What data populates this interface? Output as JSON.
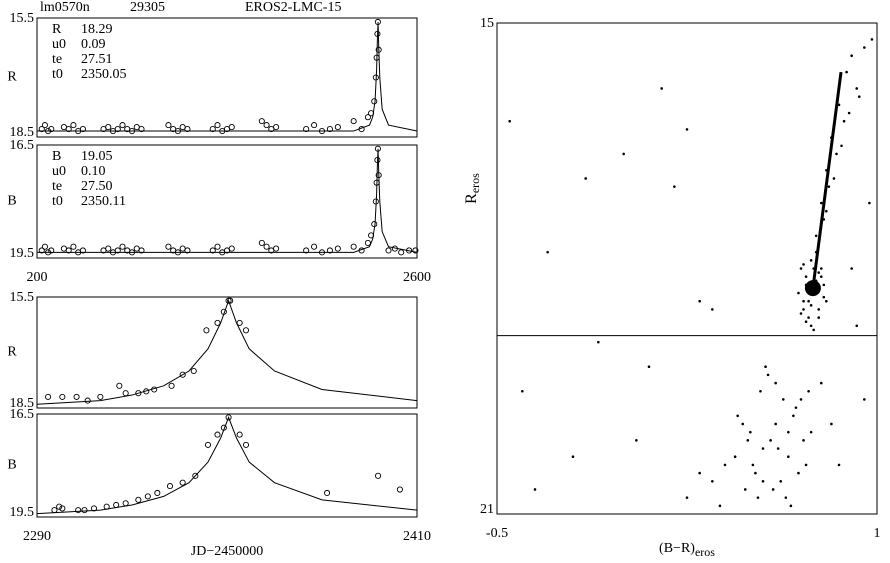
{
  "header": {
    "field": "lm0570n",
    "star": "29305",
    "event": "EROS2-LMC-15"
  },
  "chart_data": [
    {
      "type": "scatter",
      "ylabel": "R",
      "xlim": [
        200,
        2600
      ],
      "ylim": [
        18.5,
        15.5
      ],
      "yticks": [
        15.5,
        18.5
      ],
      "params": [
        [
          "R",
          "18.29"
        ],
        [
          "u0",
          "0.09"
        ],
        [
          "te",
          "27.51"
        ],
        [
          "t0",
          "2350.05"
        ]
      ],
      "points": {
        "x": [
          230,
          250,
          270,
          290,
          370,
          400,
          430,
          460,
          490,
          620,
          650,
          680,
          710,
          740,
          770,
          800,
          830,
          860,
          1030,
          1060,
          1090,
          1120,
          1150,
          1310,
          1340,
          1370,
          1400,
          1430,
          1620,
          1650,
          1680,
          1710,
          1900,
          1950,
          2000,
          2050,
          2100,
          2200,
          2250,
          2290,
          2310,
          2330,
          2340,
          2345,
          2350,
          2353,
          2358
        ],
        "values": [
          18.3,
          18.2,
          18.35,
          18.3,
          18.25,
          18.3,
          18.2,
          18.35,
          18.3,
          18.3,
          18.25,
          18.35,
          18.3,
          18.2,
          18.3,
          18.35,
          18.25,
          18.3,
          18.2,
          18.3,
          18.35,
          18.25,
          18.3,
          18.3,
          18.2,
          18.35,
          18.3,
          18.25,
          18.1,
          18.2,
          18.3,
          18.25,
          18.3,
          18.2,
          18.35,
          18.3,
          18.25,
          18.1,
          18.3,
          18.0,
          17.9,
          17.6,
          17.0,
          16.5,
          15.9,
          15.6,
          16.3
        ]
      },
      "model": {
        "x": [
          200,
          2200,
          2300,
          2320,
          2335,
          2345,
          2350,
          2354,
          2358,
          2365,
          2380,
          2420,
          2600
        ],
        "values": [
          18.35,
          18.35,
          18.2,
          18.0,
          17.6,
          16.8,
          16.0,
          15.6,
          16.2,
          17.0,
          17.8,
          18.2,
          18.35
        ]
      }
    },
    {
      "type": "scatter",
      "ylabel": "B",
      "xlim": [
        200,
        2600
      ],
      "ylim": [
        19.5,
        16.5
      ],
      "yticks": [
        16.5,
        19.5
      ],
      "xticks": [
        200,
        2600
      ],
      "params": [
        [
          "B",
          "19.05"
        ],
        [
          "u0",
          "0.10"
        ],
        [
          "te",
          "27.50"
        ],
        [
          "t0",
          "2350.11"
        ]
      ],
      "points": {
        "x": [
          230,
          250,
          270,
          290,
          370,
          400,
          430,
          460,
          490,
          620,
          650,
          680,
          710,
          740,
          770,
          800,
          830,
          860,
          1030,
          1060,
          1090,
          1120,
          1150,
          1310,
          1340,
          1370,
          1400,
          1430,
          1620,
          1650,
          1680,
          1710,
          1900,
          1950,
          2000,
          2050,
          2100,
          2200,
          2250,
          2290,
          2310,
          2330,
          2340,
          2345,
          2350,
          2353,
          2358,
          2420,
          2460,
          2500,
          2550,
          2590
        ],
        "values": [
          19.3,
          19.2,
          19.35,
          19.3,
          19.25,
          19.3,
          19.2,
          19.35,
          19.3,
          19.3,
          19.25,
          19.35,
          19.3,
          19.2,
          19.3,
          19.35,
          19.25,
          19.3,
          19.2,
          19.3,
          19.35,
          19.25,
          19.3,
          19.3,
          19.2,
          19.35,
          19.3,
          19.25,
          19.1,
          19.2,
          19.3,
          19.25,
          19.3,
          19.2,
          19.35,
          19.3,
          19.25,
          19.2,
          19.3,
          19.1,
          18.9,
          18.6,
          18.0,
          17.5,
          16.9,
          16.6,
          17.3,
          19.3,
          19.25,
          19.35,
          19.3,
          19.3
        ]
      },
      "model": {
        "x": [
          200,
          2200,
          2300,
          2320,
          2335,
          2345,
          2350,
          2354,
          2358,
          2365,
          2380,
          2420,
          2600
        ],
        "values": [
          19.35,
          19.35,
          19.2,
          19.0,
          18.6,
          17.8,
          17.0,
          16.6,
          17.2,
          18.0,
          18.8,
          19.2,
          19.35
        ]
      }
    },
    {
      "type": "scatter",
      "ylabel": "R",
      "xlim": [
        2290,
        2410
      ],
      "ylim": [
        18.5,
        15.5
      ],
      "yticks": [
        15.5,
        18.5
      ],
      "points": {
        "x": [
          2293.5,
          2298,
          2302.5,
          2306,
          2310,
          2316,
          2318,
          2322,
          2324.5,
          2327,
          2332.5,
          2336,
          2339.5,
          2343.5,
          2347,
          2349,
          2350.5,
          2351,
          2354,
          2356
        ],
        "values": [
          18.2,
          18.2,
          18.2,
          18.3,
          18.2,
          17.9,
          18.1,
          18.1,
          18.05,
          18.0,
          17.9,
          17.6,
          17.5,
          16.4,
          16.2,
          15.9,
          15.6,
          15.6,
          16.2,
          16.4
        ]
      },
      "model": {
        "x": [
          2290,
          2310,
          2320,
          2330,
          2338,
          2344,
          2348,
          2350.5,
          2353,
          2357,
          2365,
          2380,
          2410
        ],
        "values": [
          18.4,
          18.3,
          18.15,
          17.9,
          17.5,
          16.9,
          16.2,
          15.6,
          16.2,
          16.9,
          17.5,
          18.0,
          18.3
        ]
      }
    },
    {
      "type": "scatter",
      "ylabel": "B",
      "xlim": [
        2290,
        2410
      ],
      "ylim": [
        19.5,
        16.5
      ],
      "yticks": [
        16.5,
        19.5
      ],
      "xticks": [
        2290,
        2410
      ],
      "xlabel": "JD−2450000",
      "points": {
        "x": [
          2295.5,
          2297,
          2298,
          2303,
          2305,
          2308,
          2312,
          2315,
          2318,
          2322,
          2325,
          2328,
          2332,
          2336,
          2340,
          2344,
          2347,
          2349,
          2350.5,
          2354,
          2356,
          2381.6,
          2397.7,
          2404.6
        ],
        "values": [
          19.3,
          19.2,
          19.25,
          19.3,
          19.3,
          19.25,
          19.2,
          19.15,
          19.1,
          19.0,
          18.9,
          18.8,
          18.6,
          18.5,
          18.3,
          17.4,
          17.1,
          16.9,
          16.6,
          17.1,
          17.4,
          18.8,
          18.3,
          18.7
        ]
      },
      "model": {
        "x": [
          2290,
          2310,
          2320,
          2330,
          2338,
          2344,
          2348,
          2350.5,
          2353,
          2357,
          2365,
          2380,
          2410
        ],
        "values": [
          19.4,
          19.3,
          19.15,
          18.9,
          18.5,
          17.9,
          17.2,
          16.6,
          17.2,
          17.9,
          18.5,
          19.0,
          19.3
        ]
      }
    },
    {
      "type": "scatter",
      "ylabel": "R",
      "ylabel_sub": "eros",
      "xlabel": "(B−R)",
      "xlabel_sub": "eros",
      "xlim": [
        -0.5,
        1.0
      ],
      "xticks": [
        -0.5,
        1.0
      ],
      "ylim": [
        21,
        15
      ],
      "yticks": [
        15,
        21
      ],
      "hline": 18.82,
      "points": {
        "x": [
          0.7,
          0.72,
          0.74,
          0.76,
          0.78,
          0.71,
          0.73,
          0.75,
          0.77,
          0.79,
          0.69,
          0.74,
          0.76,
          0.72,
          0.8,
          0.73,
          0.75,
          0.71,
          0.77,
          0.78,
          0.74,
          0.7,
          0.76,
          0.73,
          0.79,
          0.75,
          0.72,
          0.77,
          0.74,
          0.71,
          0.76,
          0.78,
          0.8,
          0.82,
          0.85,
          0.88,
          0.9,
          0.79,
          0.81,
          0.84,
          0.87,
          0.92,
          0.95,
          0.77,
          0.83,
          0.86,
          0.89,
          0.93,
          0.98,
          0.8,
          0.45,
          0.5,
          0.55,
          0.6,
          0.65,
          0.7,
          0.52,
          0.58,
          0.62,
          0.68,
          0.72,
          0.48,
          0.54,
          0.64,
          0.74,
          0.4,
          0.35,
          0.57,
          0.66,
          0.78,
          0.61,
          0.53,
          0.47,
          0.69,
          0.59,
          0.63,
          0.56,
          0.71,
          0.44,
          0.67,
          0.38,
          0.51,
          0.73,
          0.82,
          0.3,
          0.25,
          0.6,
          0.55,
          0.49,
          0.65,
          -0.4,
          -0.3,
          -0.2,
          -0.1,
          0.0,
          0.1,
          0.2,
          0.3,
          -0.35,
          -0.15,
          0.05,
          0.25,
          0.9,
          0.95,
          0.97,
          0.92,
          0.15,
          0.35,
          0.85,
          -0.45
        ],
        "values": [
          18.0,
          18.2,
          17.9,
          18.3,
          18.1,
          18.5,
          18.4,
          18.0,
          18.6,
          18.2,
          18.3,
          18.7,
          17.8,
          18.1,
          18.4,
          18.6,
          18.3,
          17.95,
          18.5,
          18.0,
          18.45,
          18.55,
          18.15,
          18.25,
          18.35,
          18.75,
          18.65,
          18.05,
          18.2,
          18.4,
          17.6,
          17.2,
          16.8,
          16.4,
          16.0,
          15.6,
          15.4,
          17.4,
          17.0,
          16.6,
          16.2,
          15.8,
          15.3,
          17.7,
          16.9,
          16.5,
          16.1,
          15.9,
          15.2,
          17.3,
          19.8,
          20.0,
          20.2,
          19.9,
          20.3,
          19.6,
          20.5,
          20.1,
          20.6,
          19.7,
          20.4,
          20.7,
          19.5,
          20.8,
          20.0,
          20.4,
          20.6,
          19.3,
          20.9,
          19.4,
          20.2,
          20.8,
          19.9,
          20.5,
          20.7,
          19.6,
          19.2,
          20.1,
          20.3,
          19.8,
          20.9,
          20.4,
          19.5,
          19.9,
          20.5,
          20.8,
          19.4,
          20.6,
          20.1,
          20.0,
          19.5,
          17.8,
          20.3,
          18.9,
          16.6,
          19.2,
          17.0,
          18.4,
          20.7,
          16.9,
          20.1,
          16.3,
          18.0,
          19.6,
          17.2,
          18.7,
          15.8,
          18.5,
          20.4,
          16.2
        ]
      },
      "track": {
        "x": [
          0.747,
          0.858
        ],
        "values": [
          18.24,
          15.6
        ]
      }
    }
  ]
}
